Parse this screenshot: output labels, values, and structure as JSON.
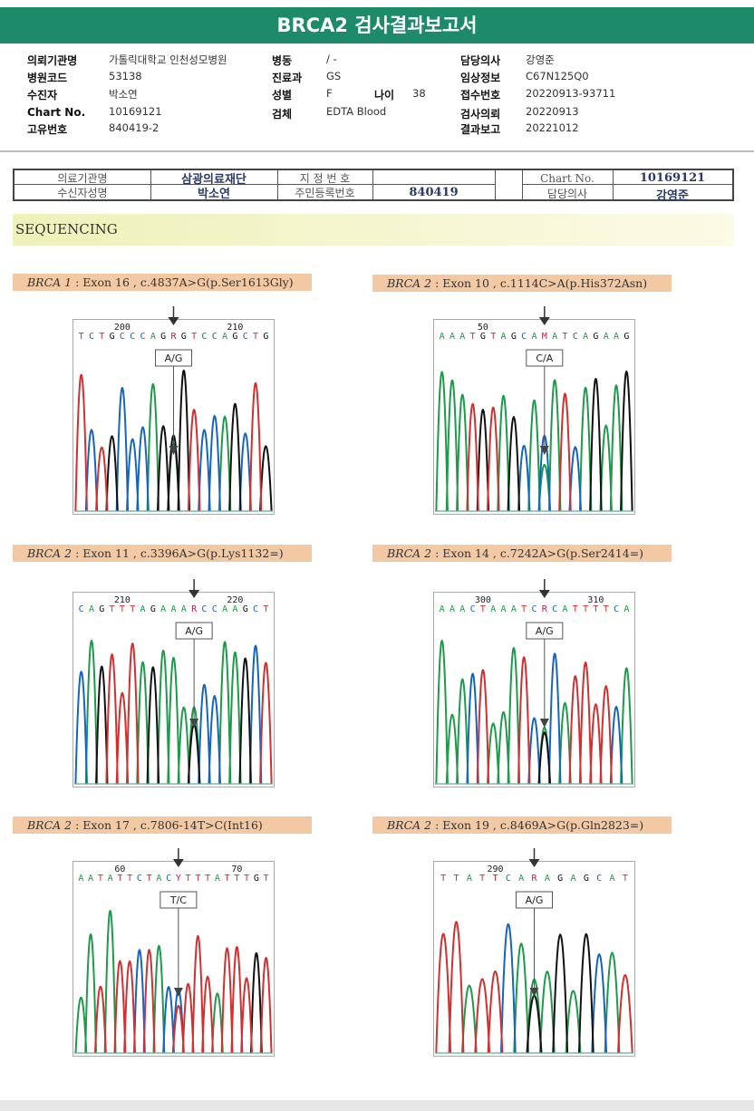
{
  "report": {
    "title": "BRCA2 검사결과보고서",
    "info_rows": [
      {
        "k1": "의뢰기관명",
        "v1": "가톨릭대학교 인천성모병원",
        "k2": "병동",
        "v2": "/ -",
        "k3": "",
        "v3": "",
        "k4": "담당의사",
        "v4": "강영준"
      },
      {
        "k1": "병원코드",
        "v1": "53138",
        "k2": "진료과",
        "v2": "GS",
        "k3": "",
        "v3": "",
        "k4": "임상정보",
        "v4": "C67N125Q0"
      },
      {
        "k1": "수진자",
        "v1": "박소연",
        "k2": "성별",
        "v2": "F",
        "k3": "나이",
        "v3": "38",
        "k4": "접수번호",
        "v4": "20220913-93711"
      },
      {
        "k1": "Chart No.",
        "v1": "10169121",
        "k2": "검체",
        "v2": "EDTA Blood",
        "k3": "",
        "v3": "",
        "k4": "검사의뢰",
        "v4": "20220913"
      },
      {
        "k1": "고유번호",
        "v1": "840419-2",
        "k2": "",
        "v2": "",
        "k3": "",
        "v3": "",
        "k4": "결과보고",
        "v4": "20221012"
      }
    ]
  },
  "lab_table": {
    "l_org": "의료기관명",
    "v_org": "삼광의료재단",
    "l_desig": "지 정 번 호",
    "v_desig": "",
    "l_chart": "Chart No.",
    "v_chart": "10169121",
    "l_name": "수신자성명",
    "v_name": "박소연",
    "l_rrn": "주민등록번호",
    "v_rrn": "840419",
    "l_doctor": "담당의사",
    "v_doctor": "강영준"
  },
  "section": {
    "title": "SEQUENCING"
  },
  "variants": [
    {
      "gene": "BRCA 1",
      "detail": ": Exon 16 , c.4837A>G(p.Ser1613Gly)",
      "seq": "TCTGCCCAGRGTCCAGCTG",
      "pos_left": "200",
      "pos_right": "210",
      "call": "A/G",
      "seed": 11
    },
    {
      "gene": "BRCA 2",
      "detail": ": Exon 10 , c.1114C>A(p.His372Asn)",
      "seq": "AAATGTAGCAMATCAGAAG",
      "pos_left": "50",
      "pos_right": "",
      "call": "C/A",
      "seed": 23
    },
    {
      "gene": "BRCA 2",
      "detail": ": Exon 11 , c.3396A>G(p.Lys1132=)",
      "seq": "CAGTTTAGAAARCCAAGCT",
      "pos_left": "210",
      "pos_right": "220",
      "call": "A/G",
      "seed": 37
    },
    {
      "gene": "BRCA 2",
      "detail": ": Exon 14 , c.7242A>G(p.Ser2414=)",
      "seq": "AAACTAAATCRCATTTTCA",
      "pos_left": "300",
      "pos_right": "310",
      "call": "A/G",
      "seed": 41
    },
    {
      "gene": "BRCA 2",
      "detail": ": Exon 17 , c.7806-14T>C(Int16)",
      "seq": "AATATTCTACYTTTATTTGT",
      "pos_left": "60",
      "pos_right": "70",
      "call": "T/C",
      "seed": 53
    },
    {
      "gene": "BRCA 2",
      "detail": ": Exon 19 , c.8469A>G(p.Gln2823=)",
      "seq": "TTATTCARAGAGCAT",
      "pos_left": "290",
      "pos_right": "",
      "call": "A/G",
      "seed": 67
    }
  ],
  "colors": {
    "A": "#1d9a4a",
    "C": "#1565c0",
    "G": "#111111",
    "T": "#d32f2f",
    "header": "#1d8a6a",
    "label_bg": "#f2c9a3"
  }
}
